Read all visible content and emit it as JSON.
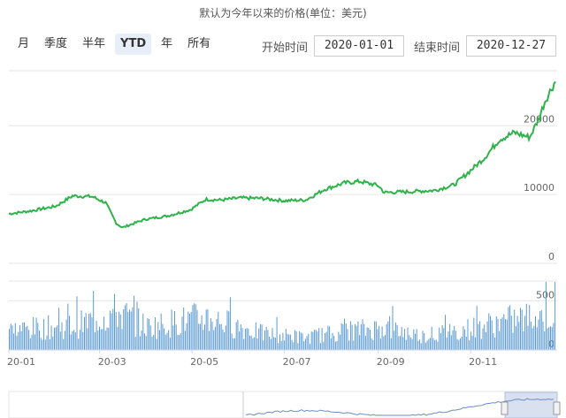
{
  "subtitle": "默认为今年以来的价格(单位：美元)",
  "range_selector": {
    "buttons": [
      "月",
      "季度",
      "半年",
      "YTD",
      "年",
      "所有"
    ],
    "active": "YTD"
  },
  "date_range": {
    "start_label": "开始时间",
    "start_value": "2020-01-01",
    "end_label": "结束时间",
    "end_value": "2020-12-27"
  },
  "chart_data": {
    "type": "line",
    "price": {
      "x": [
        "2020-01-01",
        "2020-01-15",
        "2020-02-01",
        "2020-02-12",
        "2020-02-25",
        "2020-03-05",
        "2020-03-12",
        "2020-03-16",
        "2020-03-31",
        "2020-04-15",
        "2020-04-30",
        "2020-05-10",
        "2020-05-20",
        "2020-06-01",
        "2020-06-15",
        "2020-07-01",
        "2020-07-15",
        "2020-07-28",
        "2020-08-10",
        "2020-08-20",
        "2020-09-01",
        "2020-09-05",
        "2020-09-20",
        "2020-10-08",
        "2020-10-21",
        "2020-11-01",
        "2020-11-10",
        "2020-11-20",
        "2020-11-30",
        "2020-12-10",
        "2020-12-16",
        "2020-12-20",
        "2020-12-27"
      ],
      "y": [
        7200,
        7600,
        8300,
        9800,
        9700,
        8800,
        5800,
        5200,
        6400,
        6900,
        7800,
        9300,
        9200,
        9500,
        9450,
        9100,
        9200,
        10800,
        11700,
        11900,
        11300,
        10300,
        10400,
        10600,
        11400,
        13500,
        15300,
        18000,
        19000,
        18300,
        21000,
        23500,
        26500
      ],
      "ylim": [
        0,
        28000
      ],
      "y_ticks": [
        0,
        10000,
        20000
      ]
    },
    "volume": {
      "y_ticks": [
        0,
        500
      ],
      "profile": [
        [
          "2020-01-01",
          260
        ],
        [
          "2020-02-15",
          320
        ],
        [
          "2020-03-12",
          500
        ],
        [
          "2020-04-01",
          300
        ],
        [
          "2020-05-10",
          430
        ],
        [
          "2020-06-15",
          220
        ],
        [
          "2020-07-15",
          160
        ],
        [
          "2020-08-10",
          250
        ],
        [
          "2020-09-05",
          290
        ],
        [
          "2020-10-01",
          180
        ],
        [
          "2020-11-01",
          280
        ],
        [
          "2020-11-25",
          380
        ],
        [
          "2020-12-27",
          470
        ]
      ]
    },
    "x_tick_labels": [
      "20-01",
      "20-03",
      "20-05",
      "20-07",
      "20-09",
      "20-11"
    ],
    "color": "#2db34a",
    "volume_color": "#5b9bd5"
  }
}
